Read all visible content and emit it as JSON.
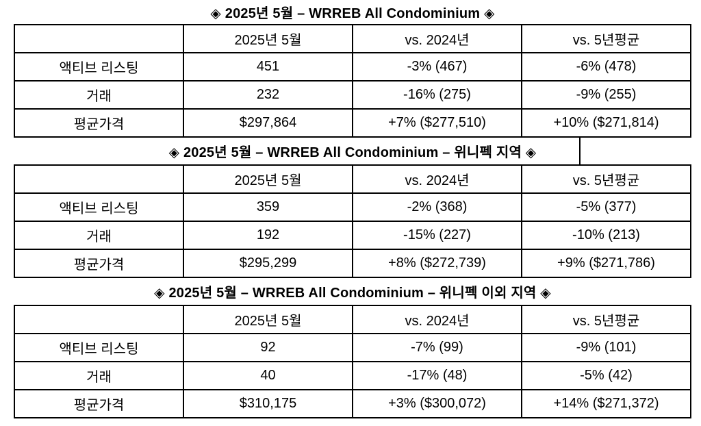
{
  "document": {
    "colors": {
      "text": "#000000",
      "border": "#000000",
      "background": "#ffffff"
    },
    "tables": [
      {
        "title": "◈ 2025년 5월 – WRREB All Condominium ◈",
        "columns": [
          "",
          "2025년 5월",
          "vs. 2024년",
          "vs. 5년평균"
        ],
        "rows": [
          [
            "액티브 리스팅",
            "451",
            "-3% (467)",
            "-6% (478)"
          ],
          [
            "거래",
            "232",
            "-16% (275)",
            "-9% (255)"
          ],
          [
            "평균가격",
            "$297,864",
            "+7% ($277,510)",
            "+10% ($271,814)"
          ]
        ]
      },
      {
        "title": "◈ 2025년 5월 – WRREB All Condominium – 위니펙 지역 ◈",
        "columns": [
          "",
          "2025년 5월",
          "vs. 2024년",
          "vs. 5년평균"
        ],
        "rows": [
          [
            "액티브 리스팅",
            "359",
            "-2% (368)",
            "-5% (377)"
          ],
          [
            "거래",
            "192",
            "-15% (227)",
            "-10% (213)"
          ],
          [
            "평균가격",
            "$295,299",
            "+8% ($272,739)",
            "+9% ($271,786)"
          ]
        ]
      },
      {
        "title": "◈ 2025년 5월 – WRREB All Condominium – 위니펙 이외 지역 ◈",
        "columns": [
          "",
          "2025년 5월",
          "vs. 2024년",
          "vs. 5년평균"
        ],
        "rows": [
          [
            "액티브 리스팅",
            "92",
            "-7% (99)",
            "-9% (101)"
          ],
          [
            "거래",
            "40",
            "-17% (48)",
            "-5% (42)"
          ],
          [
            "평균가격",
            "$310,175",
            "+3% ($300,072)",
            "+14% ($271,372)"
          ]
        ]
      }
    ]
  }
}
